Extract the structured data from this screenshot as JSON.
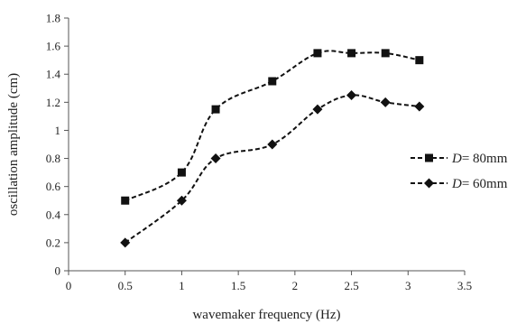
{
  "chart_data": {
    "type": "line",
    "title": "",
    "xlabel": "wavemaker frequency (Hz)",
    "ylabel": "oscillation amplitude (cm)",
    "xlim": [
      0,
      3.5
    ],
    "ylim": [
      0,
      1.8
    ],
    "x_ticks": [
      "0",
      "0.5",
      "1",
      "1.5",
      "2",
      "2.5",
      "3",
      "3.5"
    ],
    "y_ticks": [
      "0",
      "0.2",
      "0.4",
      "0.6",
      "0.8",
      "1",
      "1.2",
      "1.4",
      "1.6",
      "1.8"
    ],
    "grid": false,
    "legend_position": "right",
    "series": [
      {
        "name_var": "D",
        "name_rest": "= 80mm",
        "marker": "square",
        "color": "#111111",
        "dash": "dashed",
        "x": [
          0.5,
          1.0,
          1.3,
          1.8,
          2.2,
          2.5,
          2.8,
          3.1
        ],
        "y": [
          0.5,
          0.7,
          1.15,
          1.35,
          1.55,
          1.55,
          1.55,
          1.5
        ]
      },
      {
        "name_var": "D",
        "name_rest": "= 60mm",
        "marker": "diamond",
        "color": "#111111",
        "dash": "dashed",
        "x": [
          0.5,
          1.0,
          1.3,
          1.8,
          2.2,
          2.5,
          2.8,
          3.1
        ],
        "y": [
          0.2,
          0.5,
          0.8,
          0.9,
          1.15,
          1.25,
          1.2,
          1.17
        ]
      }
    ]
  }
}
